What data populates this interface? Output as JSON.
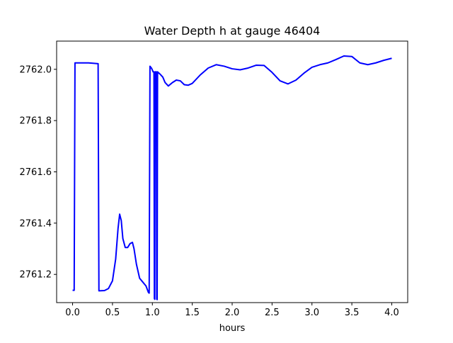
{
  "chart_data": {
    "type": "line",
    "title": "Water Depth h at gauge 46404",
    "xlabel": "hours",
    "ylabel": "",
    "xlim": [
      -0.2,
      4.2
    ],
    "ylim": [
      2761.09,
      2762.11
    ],
    "x_ticks": [
      0.0,
      0.5,
      1.0,
      1.5,
      2.0,
      2.5,
      3.0,
      3.5,
      4.0
    ],
    "x_tick_labels": [
      "0.0",
      "0.5",
      "1.0",
      "1.5",
      "2.0",
      "2.5",
      "3.0",
      "3.5",
      "4.0"
    ],
    "y_ticks": [
      2761.2,
      2761.4,
      2761.6,
      2761.8,
      2762.0
    ],
    "y_tick_labels": [
      "2761.2",
      "2761.4",
      "2761.6",
      "2761.8",
      "2762.0"
    ],
    "grid": false,
    "legend": "none",
    "series": [
      {
        "color": "#0000ff",
        "points": [
          [
            0.0,
            2761.138
          ],
          [
            0.02,
            2761.138
          ],
          [
            0.03,
            2762.025
          ],
          [
            0.1,
            2762.025
          ],
          [
            0.2,
            2762.025
          ],
          [
            0.32,
            2762.022
          ],
          [
            0.33,
            2761.136
          ],
          [
            0.4,
            2761.137
          ],
          [
            0.45,
            2761.145
          ],
          [
            0.5,
            2761.175
          ],
          [
            0.54,
            2761.26
          ],
          [
            0.57,
            2761.38
          ],
          [
            0.59,
            2761.435
          ],
          [
            0.61,
            2761.41
          ],
          [
            0.63,
            2761.34
          ],
          [
            0.66,
            2761.305
          ],
          [
            0.69,
            2761.305
          ],
          [
            0.72,
            2761.32
          ],
          [
            0.75,
            2761.325
          ],
          [
            0.77,
            2761.3
          ],
          [
            0.8,
            2761.24
          ],
          [
            0.84,
            2761.185
          ],
          [
            0.88,
            2761.17
          ],
          [
            0.92,
            2761.155
          ],
          [
            0.95,
            2761.13
          ],
          [
            0.96,
            2761.127
          ],
          [
            0.97,
            2762.012
          ],
          [
            0.99,
            2762.004
          ],
          [
            1.01,
            2761.99
          ],
          [
            1.02,
            2761.99
          ],
          [
            1.025,
            2761.106
          ],
          [
            1.03,
            2761.103
          ],
          [
            1.035,
            2761.99
          ],
          [
            1.05,
            2761.99
          ],
          [
            1.055,
            2761.103
          ],
          [
            1.06,
            2761.102
          ],
          [
            1.065,
            2761.99
          ],
          [
            1.1,
            2761.98
          ],
          [
            1.13,
            2761.97
          ],
          [
            1.16,
            2761.948
          ],
          [
            1.2,
            2761.935
          ],
          [
            1.25,
            2761.948
          ],
          [
            1.3,
            2761.958
          ],
          [
            1.35,
            2761.955
          ],
          [
            1.4,
            2761.94
          ],
          [
            1.45,
            2761.938
          ],
          [
            1.5,
            2761.945
          ],
          [
            1.6,
            2761.978
          ],
          [
            1.7,
            2762.005
          ],
          [
            1.8,
            2762.018
          ],
          [
            1.9,
            2762.012
          ],
          [
            2.0,
            2762.002
          ],
          [
            2.1,
            2761.998
          ],
          [
            2.2,
            2762.005
          ],
          [
            2.3,
            2762.016
          ],
          [
            2.4,
            2762.015
          ],
          [
            2.5,
            2761.988
          ],
          [
            2.6,
            2761.955
          ],
          [
            2.7,
            2761.943
          ],
          [
            2.8,
            2761.958
          ],
          [
            2.9,
            2761.985
          ],
          [
            3.0,
            2762.008
          ],
          [
            3.1,
            2762.018
          ],
          [
            3.2,
            2762.025
          ],
          [
            3.3,
            2762.038
          ],
          [
            3.4,
            2762.052
          ],
          [
            3.5,
            2762.05
          ],
          [
            3.6,
            2762.025
          ],
          [
            3.7,
            2762.018
          ],
          [
            3.8,
            2762.025
          ],
          [
            3.9,
            2762.035
          ],
          [
            4.0,
            2762.043
          ]
        ]
      }
    ]
  }
}
